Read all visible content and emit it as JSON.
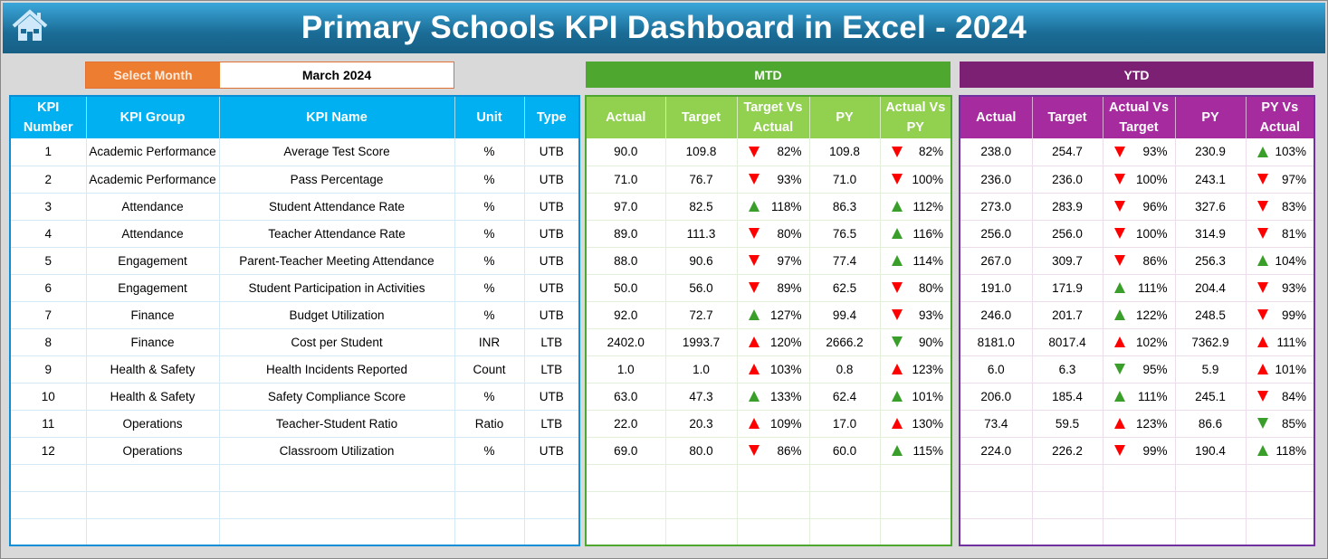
{
  "title": "Primary Schools KPI Dashboard in Excel - 2024",
  "select_month": {
    "label": "Select Month",
    "value": "March 2024"
  },
  "colors": {
    "good": "#3a9e2a",
    "bad": "#ff0000"
  },
  "mtd": {
    "label": "MTD",
    "headers": [
      "Actual",
      "Target",
      "Target Vs Actual",
      "PY",
      "Actual Vs PY"
    ]
  },
  "ytd": {
    "label": "YTD",
    "headers": [
      "Actual",
      "Target",
      "Actual Vs Target",
      "PY",
      "PY Vs Actual"
    ]
  },
  "kpi_headers": [
    "KPI Number",
    "KPI Group",
    "KPI Name",
    "Unit",
    "Type"
  ],
  "rows": [
    {
      "n": "1",
      "group": "Academic Performance",
      "name": "Average Test Score",
      "unit": "%",
      "type": "UTB",
      "mtd": [
        "90.0",
        "109.8",
        {
          "v": "82%",
          "d": "down",
          "s": "bad"
        },
        "109.8",
        {
          "v": "82%",
          "d": "down",
          "s": "bad"
        }
      ],
      "ytd": [
        "238.0",
        "254.7",
        {
          "v": "93%",
          "d": "down",
          "s": "bad"
        },
        "230.9",
        {
          "v": "103%",
          "d": "up",
          "s": "good"
        }
      ]
    },
    {
      "n": "2",
      "group": "Academic Performance",
      "name": "Pass Percentage",
      "unit": "%",
      "type": "UTB",
      "mtd": [
        "71.0",
        "76.7",
        {
          "v": "93%",
          "d": "down",
          "s": "bad"
        },
        "71.0",
        {
          "v": "100%",
          "d": "down",
          "s": "bad"
        }
      ],
      "ytd": [
        "236.0",
        "236.0",
        {
          "v": "100%",
          "d": "down",
          "s": "bad"
        },
        "243.1",
        {
          "v": "97%",
          "d": "down",
          "s": "bad"
        }
      ]
    },
    {
      "n": "3",
      "group": "Attendance",
      "name": "Student Attendance Rate",
      "unit": "%",
      "type": "UTB",
      "mtd": [
        "97.0",
        "82.5",
        {
          "v": "118%",
          "d": "up",
          "s": "good"
        },
        "86.3",
        {
          "v": "112%",
          "d": "up",
          "s": "good"
        }
      ],
      "ytd": [
        "273.0",
        "283.9",
        {
          "v": "96%",
          "d": "down",
          "s": "bad"
        },
        "327.6",
        {
          "v": "83%",
          "d": "down",
          "s": "bad"
        }
      ]
    },
    {
      "n": "4",
      "group": "Attendance",
      "name": "Teacher Attendance Rate",
      "unit": "%",
      "type": "UTB",
      "mtd": [
        "89.0",
        "111.3",
        {
          "v": "80%",
          "d": "down",
          "s": "bad"
        },
        "76.5",
        {
          "v": "116%",
          "d": "up",
          "s": "good"
        }
      ],
      "ytd": [
        "256.0",
        "256.0",
        {
          "v": "100%",
          "d": "down",
          "s": "bad"
        },
        "314.9",
        {
          "v": "81%",
          "d": "down",
          "s": "bad"
        }
      ]
    },
    {
      "n": "5",
      "group": "Engagement",
      "name": "Parent-Teacher Meeting Attendance",
      "unit": "%",
      "type": "UTB",
      "mtd": [
        "88.0",
        "90.6",
        {
          "v": "97%",
          "d": "down",
          "s": "bad"
        },
        "77.4",
        {
          "v": "114%",
          "d": "up",
          "s": "good"
        }
      ],
      "ytd": [
        "267.0",
        "309.7",
        {
          "v": "86%",
          "d": "down",
          "s": "bad"
        },
        "256.3",
        {
          "v": "104%",
          "d": "up",
          "s": "good"
        }
      ]
    },
    {
      "n": "6",
      "group": "Engagement",
      "name": "Student Participation in Activities",
      "unit": "%",
      "type": "UTB",
      "mtd": [
        "50.0",
        "56.0",
        {
          "v": "89%",
          "d": "down",
          "s": "bad"
        },
        "62.5",
        {
          "v": "80%",
          "d": "down",
          "s": "bad"
        }
      ],
      "ytd": [
        "191.0",
        "171.9",
        {
          "v": "111%",
          "d": "up",
          "s": "good"
        },
        "204.4",
        {
          "v": "93%",
          "d": "down",
          "s": "bad"
        }
      ]
    },
    {
      "n": "7",
      "group": "Finance",
      "name": "Budget Utilization",
      "unit": "%",
      "type": "UTB",
      "mtd": [
        "92.0",
        "72.7",
        {
          "v": "127%",
          "d": "up",
          "s": "good"
        },
        "99.4",
        {
          "v": "93%",
          "d": "down",
          "s": "bad"
        }
      ],
      "ytd": [
        "246.0",
        "201.7",
        {
          "v": "122%",
          "d": "up",
          "s": "good"
        },
        "248.5",
        {
          "v": "99%",
          "d": "down",
          "s": "bad"
        }
      ]
    },
    {
      "n": "8",
      "group": "Finance",
      "name": "Cost per Student",
      "unit": "INR",
      "type": "LTB",
      "mtd": [
        "2402.0",
        "1993.7",
        {
          "v": "120%",
          "d": "up",
          "s": "bad"
        },
        "2666.2",
        {
          "v": "90%",
          "d": "down",
          "s": "good"
        }
      ],
      "ytd": [
        "8181.0",
        "8017.4",
        {
          "v": "102%",
          "d": "up",
          "s": "bad"
        },
        "7362.9",
        {
          "v": "111%",
          "d": "up",
          "s": "bad"
        }
      ]
    },
    {
      "n": "9",
      "group": "Health & Safety",
      "name": "Health Incidents Reported",
      "unit": "Count",
      "type": "LTB",
      "mtd": [
        "1.0",
        "1.0",
        {
          "v": "103%",
          "d": "up",
          "s": "bad"
        },
        "0.8",
        {
          "v": "123%",
          "d": "up",
          "s": "bad"
        }
      ],
      "ytd": [
        "6.0",
        "6.3",
        {
          "v": "95%",
          "d": "down",
          "s": "good"
        },
        "5.9",
        {
          "v": "101%",
          "d": "up",
          "s": "bad"
        }
      ]
    },
    {
      "n": "10",
      "group": "Health & Safety",
      "name": "Safety Compliance Score",
      "unit": "%",
      "type": "UTB",
      "mtd": [
        "63.0",
        "47.3",
        {
          "v": "133%",
          "d": "up",
          "s": "good"
        },
        "62.4",
        {
          "v": "101%",
          "d": "up",
          "s": "good"
        }
      ],
      "ytd": [
        "206.0",
        "185.4",
        {
          "v": "111%",
          "d": "up",
          "s": "good"
        },
        "245.1",
        {
          "v": "84%",
          "d": "down",
          "s": "bad"
        }
      ]
    },
    {
      "n": "11",
      "group": "Operations",
      "name": "Teacher-Student Ratio",
      "unit": "Ratio",
      "type": "LTB",
      "mtd": [
        "22.0",
        "20.3",
        {
          "v": "109%",
          "d": "up",
          "s": "bad"
        },
        "17.0",
        {
          "v": "130%",
          "d": "up",
          "s": "bad"
        }
      ],
      "ytd": [
        "73.4",
        "59.5",
        {
          "v": "123%",
          "d": "up",
          "s": "bad"
        },
        "86.6",
        {
          "v": "85%",
          "d": "down",
          "s": "good"
        }
      ]
    },
    {
      "n": "12",
      "group": "Operations",
      "name": "Classroom Utilization",
      "unit": "%",
      "type": "UTB",
      "mtd": [
        "69.0",
        "80.0",
        {
          "v": "86%",
          "d": "down",
          "s": "bad"
        },
        "60.0",
        {
          "v": "115%",
          "d": "up",
          "s": "good"
        }
      ],
      "ytd": [
        "224.0",
        "226.2",
        {
          "v": "99%",
          "d": "down",
          "s": "bad"
        },
        "190.4",
        {
          "v": "118%",
          "d": "up",
          "s": "good"
        }
      ]
    }
  ]
}
